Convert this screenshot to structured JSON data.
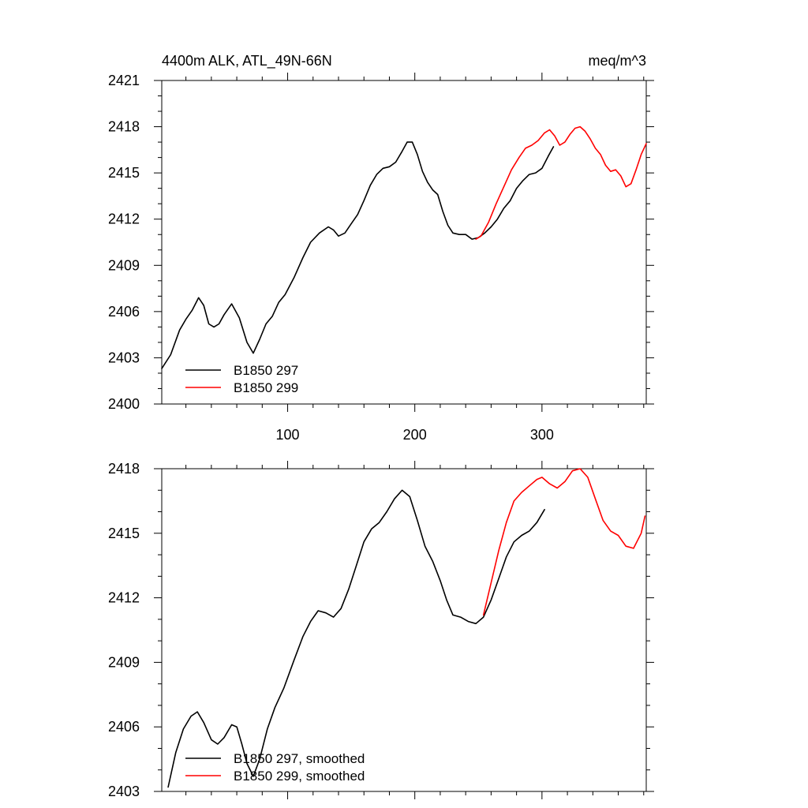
{
  "chart_data": [
    {
      "type": "line",
      "title_left": "4400m ALK, ATL_49N-66N",
      "title_right": "meq/m^3",
      "xlabel": "",
      "ylabel": "",
      "xlim": [
        1,
        382
      ],
      "ylim": [
        2400,
        2421
      ],
      "x_ticks": [
        100,
        200,
        300
      ],
      "x_tick_labels": [
        "100",
        "200",
        "300"
      ],
      "y_ticks": [
        2400,
        2403,
        2406,
        2409,
        2412,
        2415,
        2418,
        2421
      ],
      "y_tick_labels": [
        "2400",
        "2403",
        "2406",
        "2409",
        "2412",
        "2415",
        "2418",
        "2421"
      ],
      "legend_position": "bottom-left",
      "series": [
        {
          "name": "B1850 297",
          "color": "#000000",
          "points": [
            [
              1,
              2402.3
            ],
            [
              8,
              2403.2
            ],
            [
              15,
              2404.8
            ],
            [
              20,
              2405.5
            ],
            [
              25,
              2406.1
            ],
            [
              30,
              2406.9
            ],
            [
              34,
              2406.4
            ],
            [
              38,
              2405.2
            ],
            [
              42,
              2405.0
            ],
            [
              46,
              2405.2
            ],
            [
              50,
              2405.8
            ],
            [
              56,
              2406.5
            ],
            [
              62,
              2405.6
            ],
            [
              68,
              2404.0
            ],
            [
              73,
              2403.3
            ],
            [
              78,
              2404.2
            ],
            [
              83,
              2405.2
            ],
            [
              88,
              2405.7
            ],
            [
              93,
              2406.6
            ],
            [
              98,
              2407.1
            ],
            [
              105,
              2408.2
            ],
            [
              112,
              2409.5
            ],
            [
              118,
              2410.5
            ],
            [
              125,
              2411.1
            ],
            [
              132,
              2411.5
            ],
            [
              136,
              2411.3
            ],
            [
              140,
              2410.9
            ],
            [
              145,
              2411.1
            ],
            [
              150,
              2411.7
            ],
            [
              155,
              2412.3
            ],
            [
              160,
              2413.2
            ],
            [
              165,
              2414.2
            ],
            [
              170,
              2414.9
            ],
            [
              175,
              2415.3
            ],
            [
              180,
              2415.4
            ],
            [
              185,
              2415.7
            ],
            [
              190,
              2416.4
            ],
            [
              194,
              2417.0
            ],
            [
              198,
              2417.0
            ],
            [
              202,
              2416.2
            ],
            [
              206,
              2415.1
            ],
            [
              210,
              2414.4
            ],
            [
              214,
              2413.9
            ],
            [
              218,
              2413.6
            ],
            [
              222,
              2412.5
            ],
            [
              226,
              2411.6
            ],
            [
              230,
              2411.1
            ],
            [
              235,
              2411.0
            ],
            [
              240,
              2411.0
            ],
            [
              245,
              2410.7
            ],
            [
              250,
              2410.8
            ],
            [
              255,
              2411.1
            ],
            [
              260,
              2411.5
            ],
            [
              265,
              2412.0
            ],
            [
              270,
              2412.7
            ],
            [
              275,
              2413.2
            ],
            [
              280,
              2414.0
            ],
            [
              285,
              2414.5
            ],
            [
              290,
              2414.9
            ],
            [
              295,
              2415.0
            ],
            [
              300,
              2415.3
            ],
            [
              305,
              2416.1
            ],
            [
              309,
              2416.7
            ]
          ]
        },
        {
          "name": "B1850 299",
          "color": "#ff0000",
          "points": [
            [
              248,
              2410.7
            ],
            [
              252,
              2410.9
            ],
            [
              258,
              2411.8
            ],
            [
              264,
              2413.0
            ],
            [
              270,
              2414.1
            ],
            [
              276,
              2415.2
            ],
            [
              282,
              2416.0
            ],
            [
              287,
              2416.6
            ],
            [
              292,
              2416.8
            ],
            [
              297,
              2417.1
            ],
            [
              302,
              2417.6
            ],
            [
              306,
              2417.8
            ],
            [
              310,
              2417.4
            ],
            [
              314,
              2416.8
            ],
            [
              318,
              2417.0
            ],
            [
              322,
              2417.5
            ],
            [
              326,
              2417.9
            ],
            [
              330,
              2418.0
            ],
            [
              334,
              2417.7
            ],
            [
              338,
              2417.2
            ],
            [
              342,
              2416.6
            ],
            [
              346,
              2416.2
            ],
            [
              350,
              2415.5
            ],
            [
              354,
              2415.1
            ],
            [
              358,
              2415.2
            ],
            [
              362,
              2414.8
            ],
            [
              366,
              2414.1
            ],
            [
              370,
              2414.3
            ],
            [
              374,
              2415.2
            ],
            [
              378,
              2416.2
            ],
            [
              382,
              2416.9
            ]
          ]
        }
      ]
    },
    {
      "type": "line",
      "title_left": "",
      "title_right": "",
      "xlabel": "",
      "ylabel": "",
      "xlim": [
        1,
        382
      ],
      "ylim": [
        2403,
        2418
      ],
      "x_ticks": [
        100,
        200,
        300
      ],
      "x_tick_labels": [],
      "y_ticks": [
        2403,
        2406,
        2409,
        2412,
        2415,
        2418
      ],
      "y_tick_labels": [
        "2403",
        "2406",
        "2409",
        "2412",
        "2415",
        "2418"
      ],
      "legend_position": "bottom-left",
      "series": [
        {
          "name": "B1850 297, smoothed",
          "color": "#000000",
          "points": [
            [
              6,
              2403.2
            ],
            [
              12,
              2404.8
            ],
            [
              18,
              2405.9
            ],
            [
              24,
              2406.5
            ],
            [
              29,
              2406.7
            ],
            [
              34,
              2406.2
            ],
            [
              40,
              2405.4
            ],
            [
              45,
              2405.2
            ],
            [
              50,
              2405.5
            ],
            [
              56,
              2406.1
            ],
            [
              60,
              2406.0
            ],
            [
              64,
              2405.2
            ],
            [
              68,
              2404.3
            ],
            [
              73,
              2403.7
            ],
            [
              78,
              2404.5
            ],
            [
              84,
              2405.9
            ],
            [
              90,
              2406.9
            ],
            [
              97,
              2407.8
            ],
            [
              105,
              2409.1
            ],
            [
              112,
              2410.2
            ],
            [
              118,
              2410.9
            ],
            [
              124,
              2411.4
            ],
            [
              130,
              2411.3
            ],
            [
              136,
              2411.1
            ],
            [
              142,
              2411.5
            ],
            [
              148,
              2412.4
            ],
            [
              154,
              2413.5
            ],
            [
              160,
              2414.6
            ],
            [
              166,
              2415.2
            ],
            [
              172,
              2415.5
            ],
            [
              178,
              2416.0
            ],
            [
              184,
              2416.6
            ],
            [
              190,
              2417.0
            ],
            [
              196,
              2416.7
            ],
            [
              202,
              2415.6
            ],
            [
              208,
              2414.4
            ],
            [
              214,
              2413.7
            ],
            [
              220,
              2412.8
            ],
            [
              225,
              2411.9
            ],
            [
              230,
              2411.2
            ],
            [
              236,
              2411.1
            ],
            [
              242,
              2410.9
            ],
            [
              248,
              2410.8
            ],
            [
              254,
              2411.1
            ],
            [
              260,
              2411.9
            ],
            [
              266,
              2412.9
            ],
            [
              272,
              2413.9
            ],
            [
              278,
              2414.6
            ],
            [
              284,
              2414.9
            ],
            [
              290,
              2415.1
            ],
            [
              296,
              2415.5
            ],
            [
              302,
              2416.1
            ]
          ]
        },
        {
          "name": "B1850 299, smoothed",
          "color": "#ff0000",
          "points": [
            [
              254,
              2411.2
            ],
            [
              260,
              2412.7
            ],
            [
              266,
              2414.2
            ],
            [
              272,
              2415.5
            ],
            [
              278,
              2416.5
            ],
            [
              284,
              2416.9
            ],
            [
              290,
              2417.2
            ],
            [
              296,
              2417.5
            ],
            [
              300,
              2417.6
            ],
            [
              306,
              2417.3
            ],
            [
              312,
              2417.1
            ],
            [
              318,
              2417.4
            ],
            [
              324,
              2417.9
            ],
            [
              330,
              2418.0
            ],
            [
              336,
              2417.6
            ],
            [
              342,
              2416.6
            ],
            [
              348,
              2415.6
            ],
            [
              354,
              2415.1
            ],
            [
              360,
              2414.9
            ],
            [
              366,
              2414.4
            ],
            [
              372,
              2414.3
            ],
            [
              378,
              2415.0
            ],
            [
              381,
              2415.8
            ]
          ]
        }
      ]
    }
  ]
}
